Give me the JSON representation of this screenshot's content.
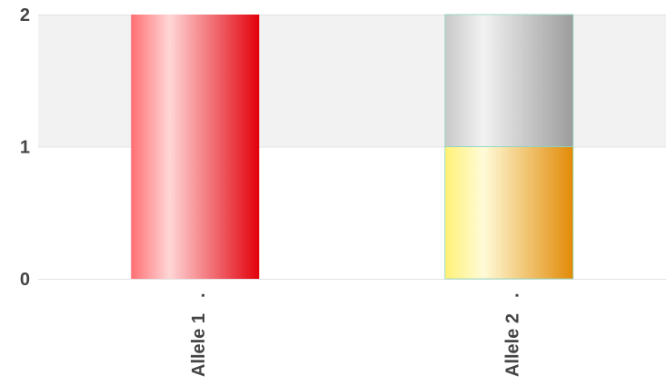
{
  "chart_data": {
    "type": "bar",
    "stacked": true,
    "categories": [
      "Allele 1",
      "Allele 2"
    ],
    "category_tick_marks": [
      ".",
      "."
    ],
    "series": [
      {
        "values": [
          2,
          0
        ],
        "colors": {
          "light": "#ffd6d6",
          "dark": "#e2000b",
          "edge": "#ff6f73"
        }
      },
      {
        "values": [
          0,
          1
        ],
        "colors": {
          "light": "#fffbd8",
          "dark": "#e28a06",
          "edge": "#fff176"
        }
      },
      {
        "values": [
          0,
          1
        ],
        "colors": {
          "light": "#f2f2f2",
          "dark": "#9c9c9c",
          "edge": "#c8c8c8"
        }
      }
    ],
    "ylim": [
      0,
      2
    ],
    "y_ticks": [
      "0",
      "1",
      "2"
    ],
    "xlabel": "",
    "ylabel": "",
    "title": "",
    "grid": true,
    "alternating_band_color": "#f2f2f2",
    "axis_text_color": "#444444",
    "bar_outline_color": "#8ad6c0"
  }
}
